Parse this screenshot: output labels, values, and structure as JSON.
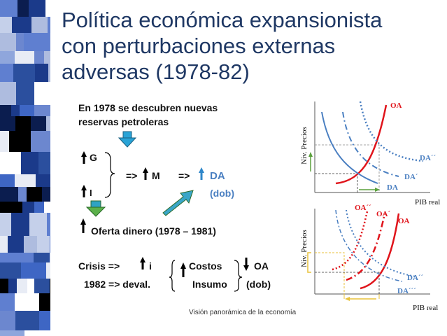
{
  "title_lines": [
    "Política económica expansionista",
    "con perturbaciones externas",
    "adversas (1978-82)"
  ],
  "bullets": {
    "b1": {
      "marker": "",
      "line1": "En 1978 se descubren nuevas",
      "line2": "reservas petroleras"
    },
    "b2": {
      "marker": "",
      "g": "G",
      "i": "I",
      "arrow_m": "=>",
      "m": "M",
      "arrow_da": "=>",
      "da": "DA",
      "dob": "(dob)"
    },
    "b3": {
      "oferta": "Oferta dinero  (1978 – 1981)"
    },
    "b4": {
      "marker": "",
      "crisis": "Crisis  =>",
      "i": "i",
      "costos": "Costos",
      "oa": "OA",
      "year": "1982  => deval.",
      "insumo": "Insumo",
      "dob": "(dob)"
    }
  },
  "graph1": {
    "ylabel": "Niv. Precios",
    "xlabel": "PIB real",
    "oa": "OA",
    "da2": "DA´´",
    "da1": "DA´",
    "da": "DA"
  },
  "graph2": {
    "ylabel": "Niv. Precios",
    "xlabel": "PIB real",
    "oa2": "OA´´",
    "oa1": "OA´",
    "oa": "OA",
    "da2": "DA´´",
    "da3": "DA´´´"
  },
  "footer": "Visión panorámica de la economía",
  "colors": {
    "title": "#1f3864",
    "red": "#e0141b",
    "blue": "#4a7fc1",
    "green": "#5aa03c",
    "yellow": "#e8c23a"
  }
}
